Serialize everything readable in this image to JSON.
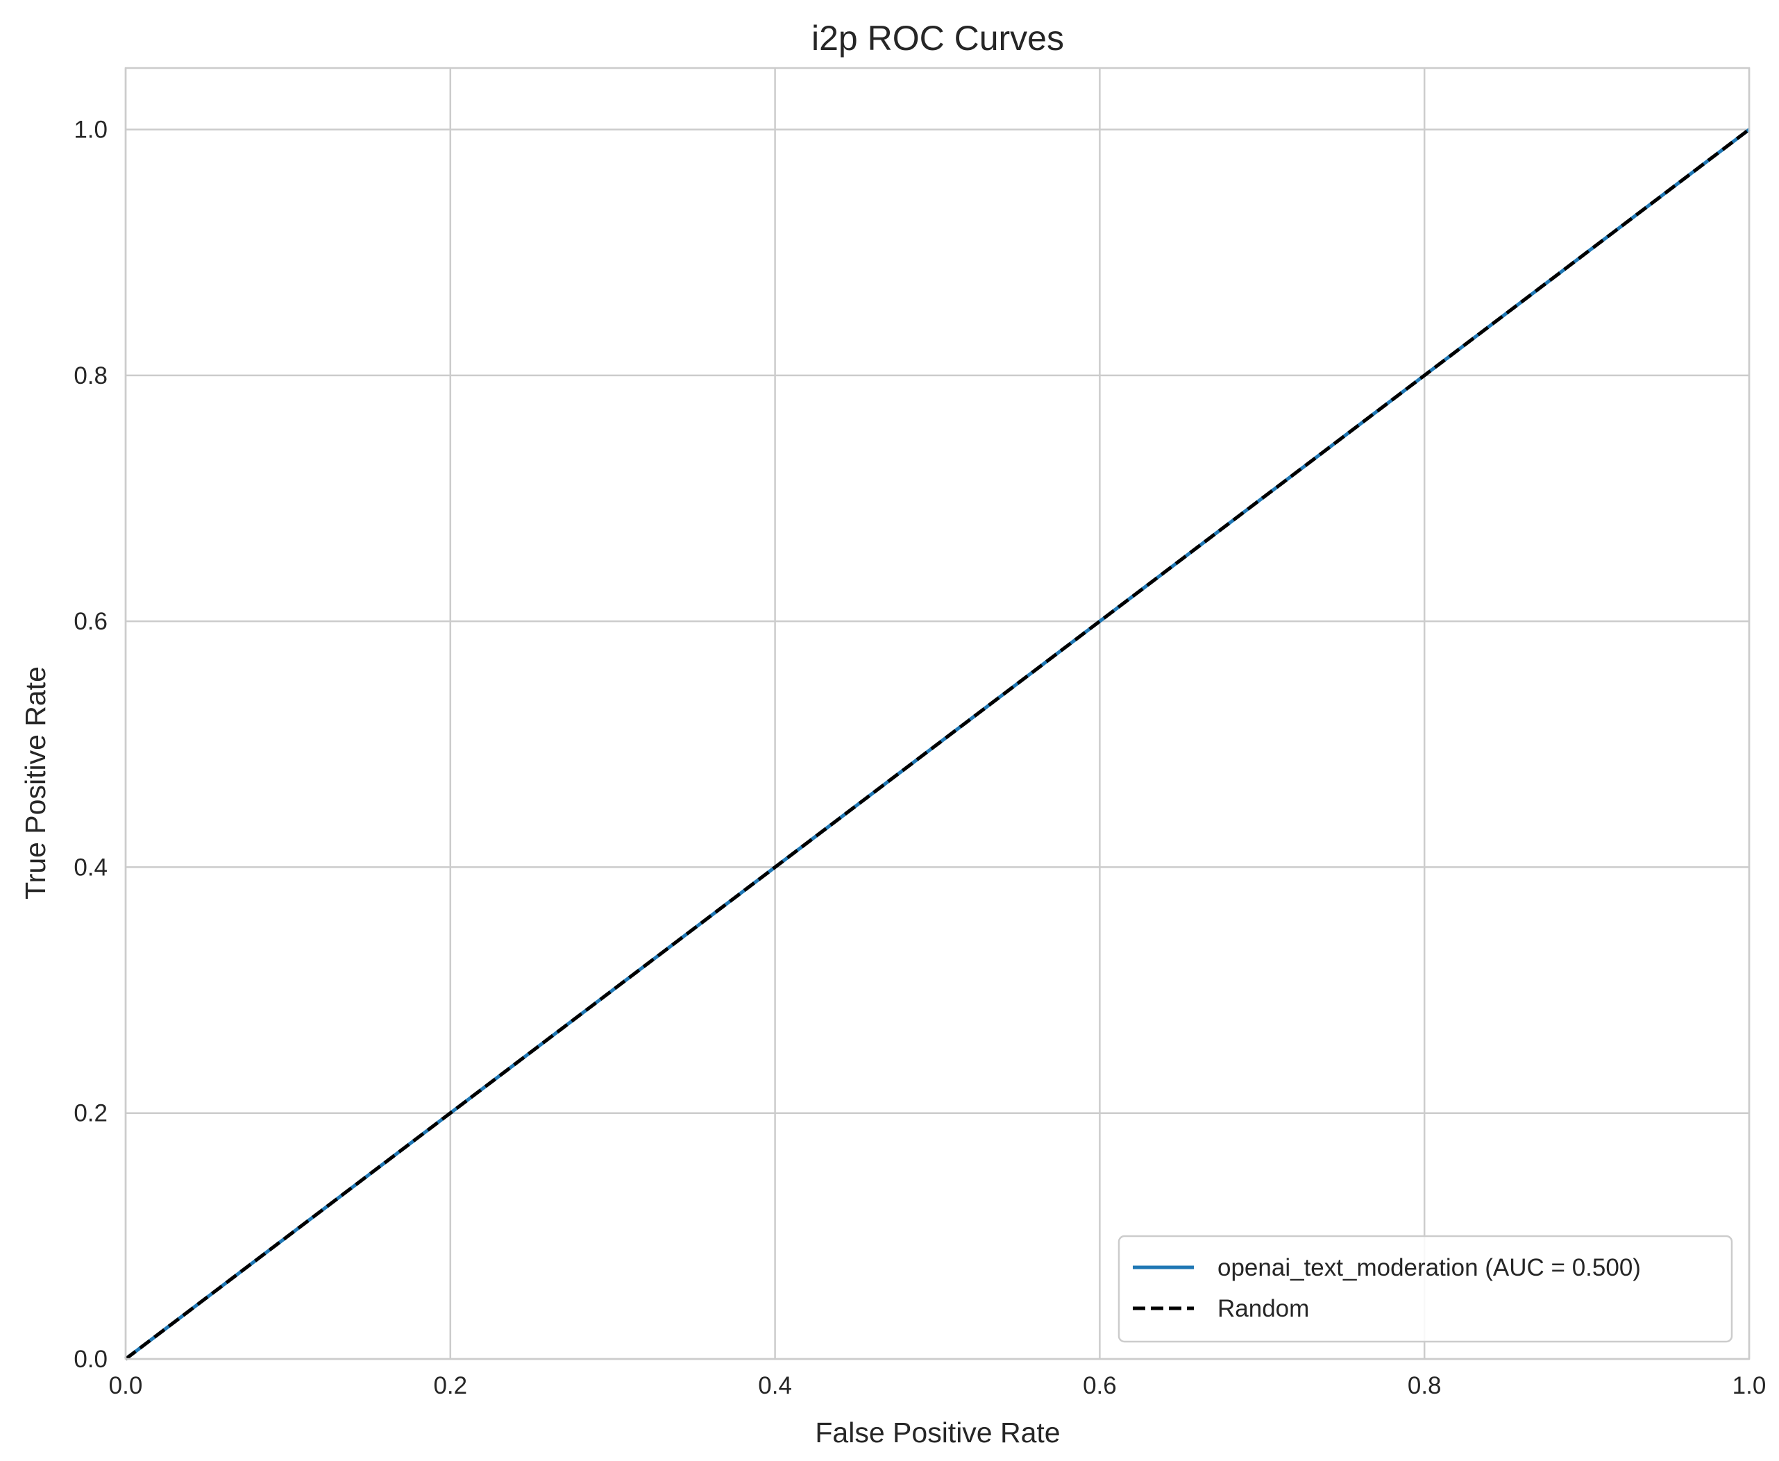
{
  "chart_data": {
    "type": "line",
    "title": "i2p ROC Curves",
    "xlabel": "False Positive Rate",
    "ylabel": "True Positive Rate",
    "xlim": [
      0.0,
      1.0
    ],
    "ylim": [
      0.0,
      1.05
    ],
    "xticks": [
      "0.0",
      "0.2",
      "0.4",
      "0.6",
      "0.8",
      "1.0"
    ],
    "yticks": [
      "0.0",
      "0.2",
      "0.4",
      "0.6",
      "0.8",
      "1.0"
    ],
    "grid": true,
    "legend_position": "lower-right",
    "series": [
      {
        "name": "openai_text_moderation (AUC = 0.500)",
        "style": "solid",
        "color": "#1f77b4",
        "x": [
          0.0,
          1.0
        ],
        "y": [
          0.0,
          1.0
        ]
      },
      {
        "name": "Random",
        "style": "dashed",
        "color": "#000000",
        "x": [
          0.0,
          1.0
        ],
        "y": [
          0.0,
          1.0
        ]
      }
    ]
  }
}
